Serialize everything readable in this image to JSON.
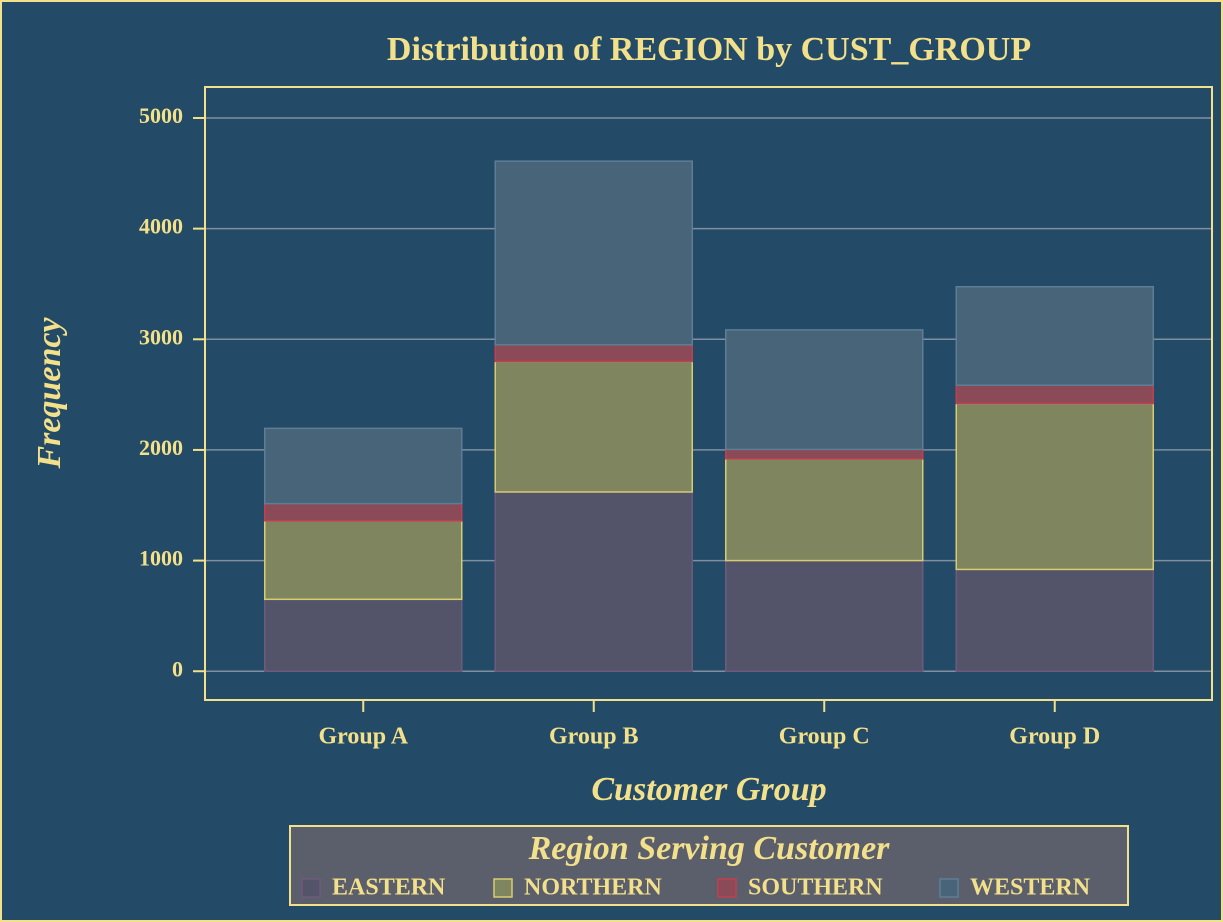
{
  "chart_data": {
    "type": "stacked_bar",
    "title": "Distribution of REGION by CUST_GROUP",
    "x_label": "Customer Group",
    "y_label": "Frequency",
    "legend_title": "Region Serving Customer",
    "categories": [
      "Group A",
      "Group B",
      "Group C",
      "Group D"
    ],
    "series": [
      {
        "name": "EASTERN",
        "color": "#535469",
        "values": [
          650,
          1620,
          1000,
          920
        ]
      },
      {
        "name": "NORTHERN",
        "color": "#7f855f",
        "values": [
          710,
          1180,
          920,
          1500
        ]
      },
      {
        "name": "SOUTHERN",
        "color": "#8a4a58",
        "values": [
          155,
          150,
          85,
          165
        ]
      },
      {
        "name": "WESTERN",
        "color": "#476478",
        "values": [
          680,
          1660,
          1080,
          890
        ]
      }
    ],
    "ylim": [
      -260,
      5280
    ],
    "yticks": [
      0,
      1000,
      2000,
      3000,
      4000,
      5000
    ],
    "grid": true
  }
}
